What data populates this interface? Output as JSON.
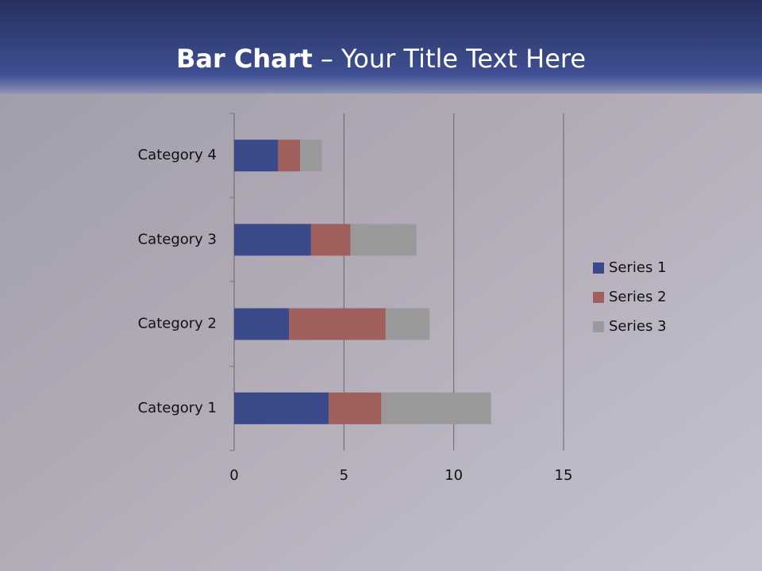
{
  "chart_data": {
    "type": "stacked-bar-horizontal",
    "title": {
      "bold": "Bar Chart",
      "text": "– Your Title Text Here"
    },
    "categories": [
      "Category 1",
      "Category 2",
      "Category 3",
      "Category 4"
    ],
    "series": [
      {
        "name": "Series 1",
        "color": "#3b4a8a",
        "values": [
          4.3,
          2.5,
          3.5,
          2.0
        ]
      },
      {
        "name": "Series 2",
        "color": "#a0605e",
        "values": [
          2.4,
          4.4,
          1.8,
          1.0
        ]
      },
      {
        "name": "Series 3",
        "color": "#9a9a9a",
        "values": [
          5.0,
          2.0,
          3.0,
          1.0
        ]
      }
    ],
    "xlim": [
      0,
      15
    ],
    "xticks": [
      0,
      5,
      10,
      15
    ],
    "grid": true,
    "legend": "right"
  }
}
